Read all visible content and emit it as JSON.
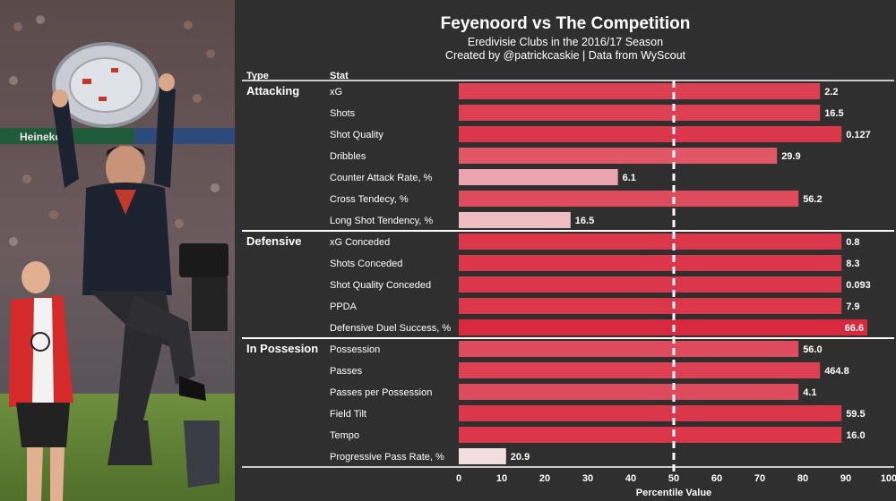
{
  "title": "Feyenoord vs The Competition",
  "subtitle": "Eredivisie Clubs in the 2016/17 Season",
  "credit": "Created by @patrickcaskie | Data from WyScout",
  "photo": {
    "subject": "Feyenoord coach celebrating with league trophy",
    "banner_text": "Heineken"
  },
  "chart_data": {
    "type": "bar",
    "orientation": "horizontal",
    "column_headers": {
      "type": "Type",
      "stat": "Stat"
    },
    "xlabel": "Percentile Value",
    "xlim": [
      0,
      100
    ],
    "xticks": [
      0,
      10,
      20,
      30,
      40,
      50,
      60,
      70,
      80,
      90,
      100
    ],
    "reference_line": 50,
    "groups": [
      {
        "name": "Attacking",
        "stats": [
          {
            "stat": "xG",
            "percentile": 84,
            "label": "2.2"
          },
          {
            "stat": "Shots",
            "percentile": 84,
            "label": "16.5"
          },
          {
            "stat": "Shot Quality",
            "percentile": 89,
            "label": "0.127"
          },
          {
            "stat": "Dribbles",
            "percentile": 74,
            "label": "29.9"
          },
          {
            "stat": "Counter Attack Rate, %",
            "percentile": 37,
            "label": "6.1"
          },
          {
            "stat": "Cross Tendecy, %",
            "percentile": 79,
            "label": "56.2"
          },
          {
            "stat": "Long Shot Tendency, %",
            "percentile": 26,
            "label": "16.5"
          }
        ]
      },
      {
        "name": "Defensive",
        "stats": [
          {
            "stat": "xG Conceded",
            "percentile": 89,
            "label": "0.8"
          },
          {
            "stat": "Shots Conceded",
            "percentile": 89,
            "label": "8.3"
          },
          {
            "stat": "Shot Quality Conceded",
            "percentile": 89,
            "label": "0.093"
          },
          {
            "stat": "PPDA",
            "percentile": 89,
            "label": "7.9"
          },
          {
            "stat": "Defensive Duel Success, %",
            "percentile": 95,
            "label": "66.6"
          }
        ]
      },
      {
        "name": "In Possesion",
        "stats": [
          {
            "stat": "Possession",
            "percentile": 79,
            "label": "56.0"
          },
          {
            "stat": "Passes",
            "percentile": 84,
            "label": "464.8"
          },
          {
            "stat": "Passes per Possession",
            "percentile": 79,
            "label": "4.1"
          },
          {
            "stat": "Field Tilt",
            "percentile": 89,
            "label": "59.5"
          },
          {
            "stat": "Tempo",
            "percentile": 89,
            "label": "16.0"
          },
          {
            "stat": "Progressive Pass Rate, %",
            "percentile": 11,
            "label": "20.9"
          }
        ]
      }
    ]
  }
}
